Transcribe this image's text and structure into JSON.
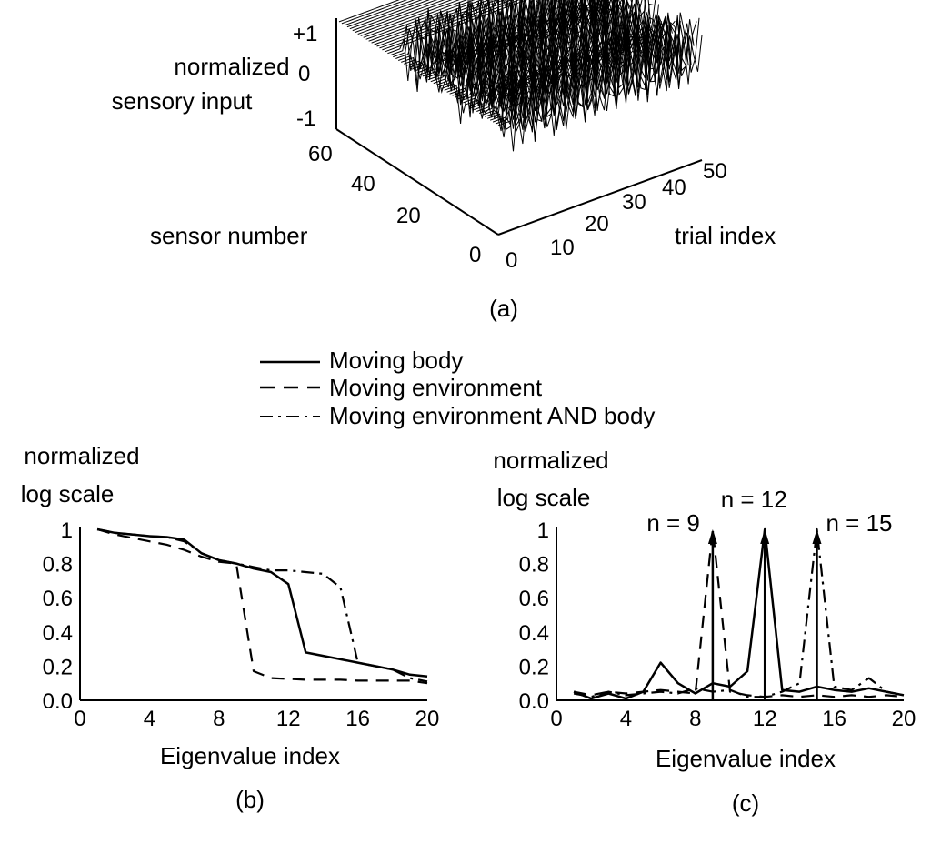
{
  "chart_data": [
    {
      "panel_label": "(a)",
      "type": "surface-3d",
      "zlabel_lines": [
        "normalized",
        "sensory input"
      ],
      "ylabel": "sensor number",
      "xlabel": "trial index",
      "z_ticks": [
        "+1",
        "0",
        "-1"
      ],
      "y_ticks": [
        "60",
        "40",
        "20",
        "0"
      ],
      "x_ticks": [
        "0",
        "10",
        "20",
        "30",
        "40",
        "50"
      ],
      "zlim": [
        -1,
        1
      ],
      "ylim": [
        0,
        60
      ],
      "xlim": [
        0,
        50
      ],
      "n_sensors": 60,
      "n_trials": 50
    },
    {
      "panel_label": "(b)",
      "type": "line",
      "ylabel_lines": [
        "normalized",
        "log scale"
      ],
      "xlabel": "Eigenvalue index",
      "x_ticks": [
        "0",
        "4",
        "8",
        "12",
        "16",
        "20"
      ],
      "y_ticks": [
        "0.0",
        "0.2",
        "0.4",
        "0.6",
        "0.8",
        "1"
      ],
      "xlim": [
        0,
        20
      ],
      "ylim": [
        0,
        1
      ],
      "series": [
        {
          "name": "Moving body",
          "style": "solid",
          "x": [
            1,
            2,
            3,
            4,
            5,
            6,
            7,
            8,
            9,
            10,
            11,
            12,
            13,
            14,
            15,
            16,
            17,
            18,
            19,
            20
          ],
          "y": [
            1.0,
            0.98,
            0.97,
            0.96,
            0.955,
            0.94,
            0.86,
            0.82,
            0.8,
            0.77,
            0.75,
            0.68,
            0.28,
            0.26,
            0.24,
            0.22,
            0.2,
            0.18,
            0.15,
            0.14
          ]
        },
        {
          "name": "Moving environment",
          "style": "dashed",
          "x": [
            1,
            2,
            3,
            4,
            5,
            6,
            7,
            8,
            9,
            10,
            11,
            12,
            13,
            14,
            15,
            16,
            17,
            18,
            19,
            20
          ],
          "y": [
            1.0,
            0.97,
            0.95,
            0.93,
            0.91,
            0.88,
            0.84,
            0.81,
            0.8,
            0.17,
            0.13,
            0.125,
            0.12,
            0.12,
            0.12,
            0.115,
            0.115,
            0.115,
            0.115,
            0.1
          ]
        },
        {
          "name": "Moving environment AND body",
          "style": "dashdot",
          "x": [
            1,
            2,
            3,
            4,
            5,
            6,
            7,
            8,
            9,
            10,
            11,
            12,
            13,
            14,
            15,
            16,
            17,
            18,
            19,
            20
          ],
          "y": [
            1.0,
            0.98,
            0.97,
            0.96,
            0.955,
            0.93,
            0.86,
            0.82,
            0.8,
            0.78,
            0.76,
            0.76,
            0.75,
            0.74,
            0.66,
            0.22,
            0.2,
            0.18,
            0.13,
            0.11
          ]
        }
      ]
    },
    {
      "panel_label": "(c)",
      "type": "line",
      "ylabel_lines": [
        "normalized",
        "log scale"
      ],
      "xlabel": "Eigenvalue index",
      "x_ticks": [
        "0",
        "4",
        "8",
        "12",
        "16",
        "20"
      ],
      "y_ticks": [
        "0.0",
        "0.2",
        "0.4",
        "0.6",
        "0.8",
        "1"
      ],
      "xlim": [
        0,
        20
      ],
      "ylim": [
        0,
        1
      ],
      "annotations": [
        {
          "text": "n = 9",
          "x": 9
        },
        {
          "text": "n = 12",
          "x": 12
        },
        {
          "text": "n = 15",
          "x": 15
        }
      ],
      "series": [
        {
          "name": "Moving body",
          "style": "solid",
          "x": [
            1,
            2,
            3,
            4,
            5,
            6,
            7,
            8,
            9,
            10,
            11,
            12,
            13,
            14,
            15,
            16,
            17,
            18,
            19,
            20
          ],
          "y": [
            0.05,
            0.01,
            0.04,
            0.01,
            0.05,
            0.22,
            0.1,
            0.04,
            0.1,
            0.08,
            0.17,
            1.0,
            0.06,
            0.05,
            0.08,
            0.06,
            0.05,
            0.07,
            0.05,
            0.03
          ]
        },
        {
          "name": "Moving environment",
          "style": "dashed",
          "x": [
            1,
            2,
            3,
            4,
            5,
            6,
            7,
            8,
            9,
            10,
            11,
            12,
            13,
            14,
            15,
            16,
            17,
            18,
            19,
            20
          ],
          "y": [
            0.05,
            0.03,
            0.05,
            0.04,
            0.05,
            0.06,
            0.05,
            0.04,
            1.0,
            0.05,
            0.03,
            0.02,
            0.03,
            0.02,
            0.03,
            0.02,
            0.03,
            0.02,
            0.03,
            0.02
          ]
        },
        {
          "name": "Moving environment AND body",
          "style": "dashdot",
          "x": [
            1,
            2,
            3,
            4,
            5,
            6,
            7,
            8,
            9,
            10,
            11,
            12,
            13,
            14,
            15,
            16,
            17,
            18,
            19,
            20
          ],
          "y": [
            0.04,
            0.02,
            0.05,
            0.03,
            0.04,
            0.05,
            0.04,
            0.07,
            0.05,
            0.06,
            0.02,
            0.02,
            0.05,
            0.1,
            1.0,
            0.08,
            0.06,
            0.13,
            0.05,
            0.03
          ]
        }
      ]
    }
  ],
  "legend": {
    "placement": "top-center",
    "entries": [
      {
        "label": "Moving body",
        "style": "solid"
      },
      {
        "label": "Moving environment",
        "style": "dashed"
      },
      {
        "label": "Moving environment AND body",
        "style": "dashdot"
      }
    ]
  }
}
